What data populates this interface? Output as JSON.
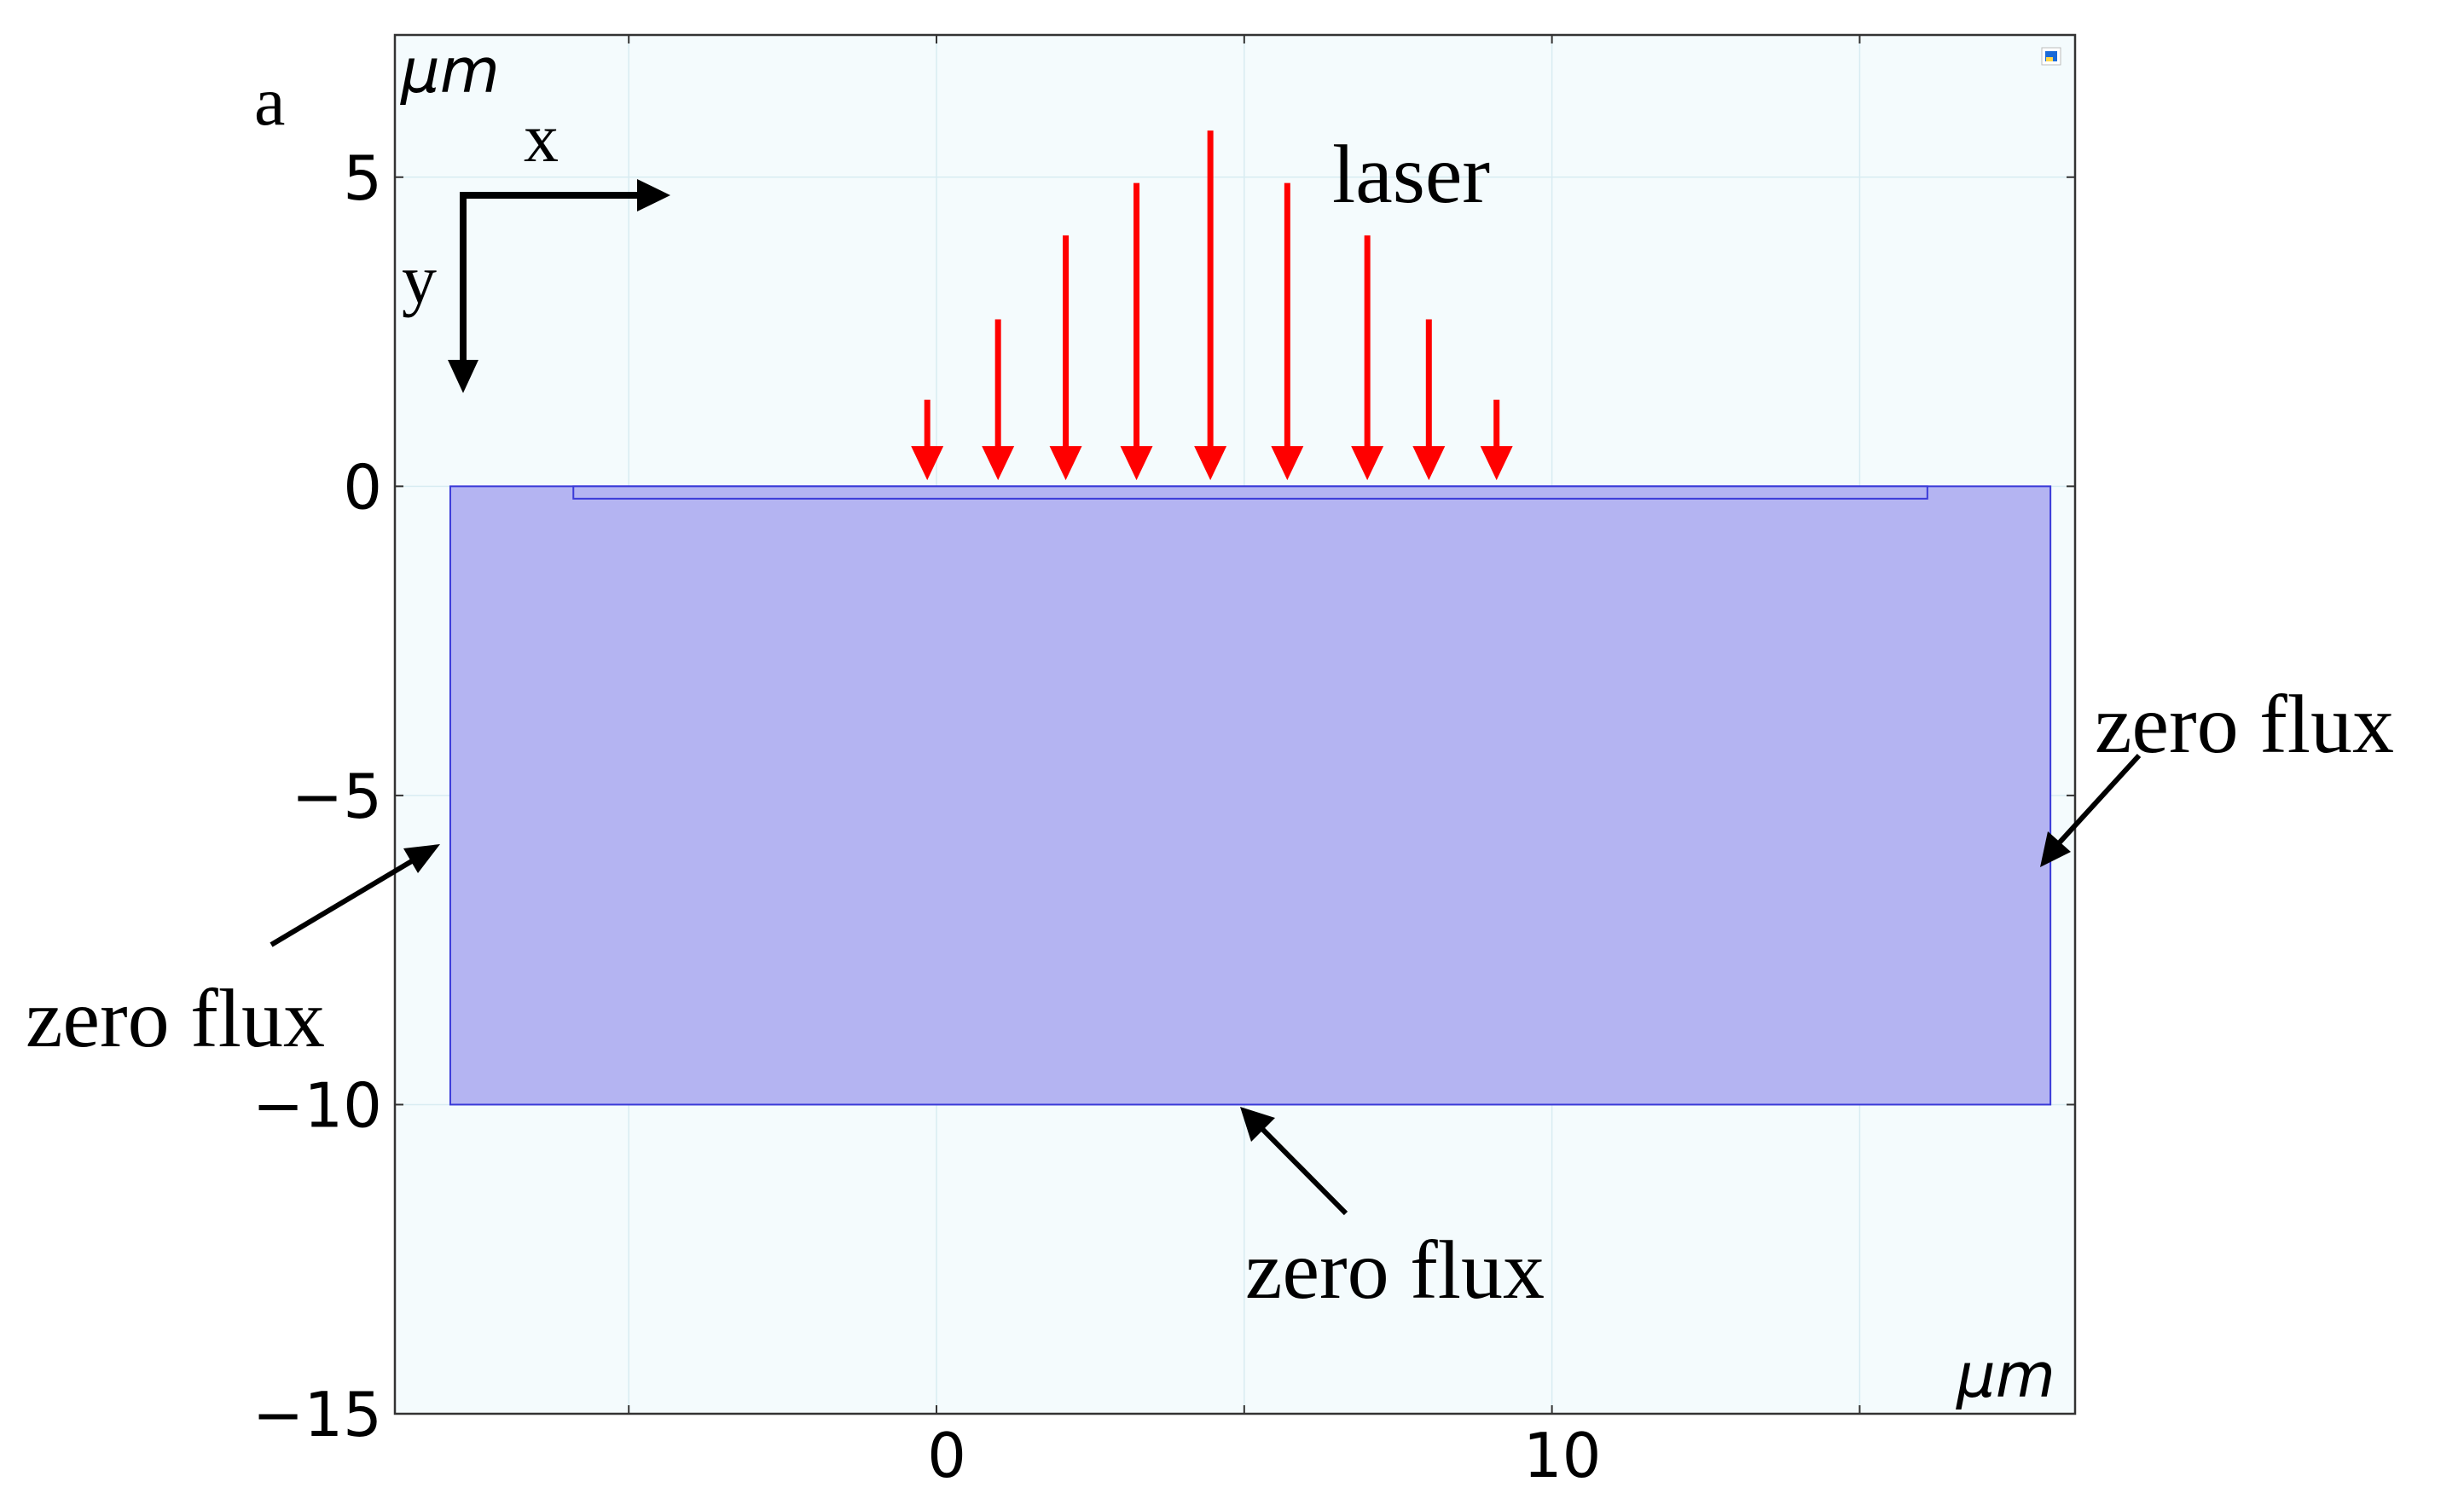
{
  "panel_label": "a",
  "unit_label": "μm",
  "x_ticks": [
    {
      "value": 0,
      "label": "0"
    },
    {
      "value": 10,
      "label": "10"
    }
  ],
  "y_ticks": [
    {
      "value": 5,
      "label": "5"
    },
    {
      "value": 0,
      "label": "0"
    },
    {
      "value": -5,
      "label": "−5"
    },
    {
      "value": -10,
      "label": "−10"
    },
    {
      "value": -15,
      "label": "−15"
    }
  ],
  "axis_range": {
    "x": [
      -8.8,
      18.5
    ],
    "y": [
      -15.0,
      7.3
    ]
  },
  "minor_x_ticks": [
    -5,
    5,
    15
  ],
  "coordinate_axes": {
    "x_label": "x",
    "y_label": "y"
  },
  "domain": {
    "x": [
      -7.9,
      18.1
    ],
    "y": [
      -10,
      0
    ]
  },
  "surface_layer": {
    "x": [
      -5.9,
      16.1
    ],
    "y": [
      -0.2,
      0
    ]
  },
  "laser": {
    "label": "laser",
    "arrows": [
      {
        "x": -0.15,
        "intensity": 0.23
      },
      {
        "x": 1.0,
        "intensity": 0.46
      },
      {
        "x": 2.1,
        "intensity": 0.7
      },
      {
        "x": 3.25,
        "intensity": 0.85
      },
      {
        "x": 4.45,
        "intensity": 1.0
      },
      {
        "x": 5.7,
        "intensity": 0.85
      },
      {
        "x": 7.0,
        "intensity": 0.7
      },
      {
        "x": 8.0,
        "intensity": 0.46
      },
      {
        "x": 9.1,
        "intensity": 0.23
      }
    ]
  },
  "boundary_labels": {
    "left": "zero flux",
    "right": "zero flux",
    "bottom": "zero flux"
  },
  "colors": {
    "plot_background": "#f4fbfd",
    "domain_fill": "#b4b4f2",
    "domain_edge": "#3a3ad8",
    "laser": "#ff0000",
    "arrow": "#000000",
    "grid": "#d8ecf2"
  },
  "icons": {
    "corner": "colored-square-icon"
  }
}
